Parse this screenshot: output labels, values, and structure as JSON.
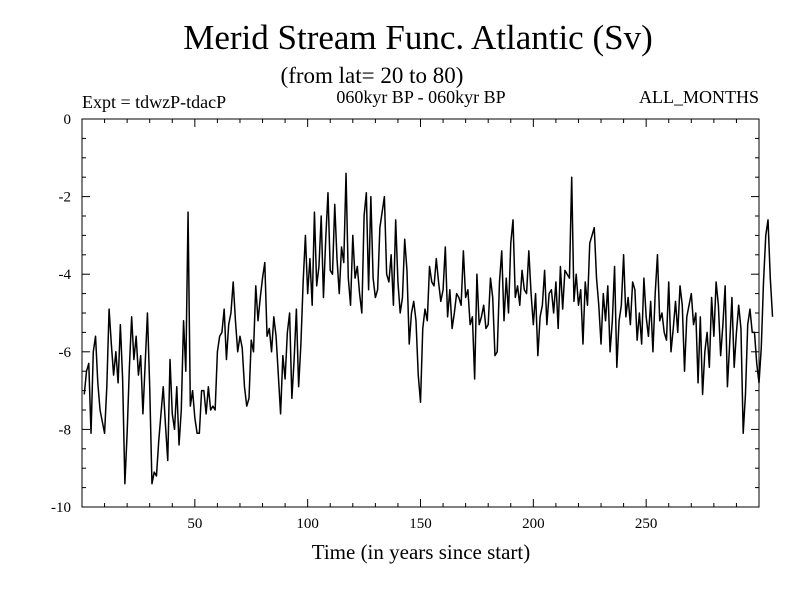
{
  "title": "Merid Stream Func. Atlantic (Sv)",
  "subtitle": "(from lat= 20 to 80)",
  "experiment_label": "Expt = tdwzP-tdacP",
  "period_label": "060kyr BP - 060kyr BP",
  "months_label": "ALL_MONTHS",
  "chart_data": {
    "type": "line",
    "title": "Merid Stream Func. Atlantic (Sv)",
    "subtitle": "(from lat= 20 to 80)",
    "xlabel": "Time (in years since start)",
    "ylabel": "",
    "xlim": [
      0,
      300
    ],
    "ylim": [
      -10,
      0
    ],
    "x_ticks": [
      50,
      100,
      150,
      200,
      250
    ],
    "y_ticks": [
      0,
      -2,
      -4,
      -6,
      -8,
      -10
    ],
    "grid": false,
    "series": [
      {
        "color": "#000000",
        "x_start": 1,
        "x_step": 1,
        "values": [
          -7.1,
          -6.5,
          -6.3,
          -8.1,
          -6.0,
          -5.6,
          -6.8,
          -7.5,
          -7.8,
          -8.1,
          -6.9,
          -4.9,
          -5.8,
          -6.6,
          -6.0,
          -6.8,
          -5.3,
          -6.7,
          -9.4,
          -8.1,
          -6.4,
          -5.1,
          -6.2,
          -5.6,
          -6.6,
          -6.1,
          -7.6,
          -6.3,
          -5.0,
          -6.9,
          -9.4,
          -9.1,
          -9.2,
          -8.3,
          -7.6,
          -6.9,
          -7.9,
          -8.8,
          -6.2,
          -7.6,
          -8.0,
          -6.9,
          -8.4,
          -7.5,
          -5.2,
          -6.5,
          -2.4,
          -7.4,
          -7.0,
          -7.7,
          -8.1,
          -8.1,
          -7.0,
          -7.0,
          -7.6,
          -6.9,
          -7.5,
          -7.4,
          -7.5,
          -6.0,
          -5.6,
          -5.5,
          -4.9,
          -6.2,
          -5.3,
          -5.0,
          -4.2,
          -5.2,
          -6.0,
          -5.6,
          -5.9,
          -6.9,
          -7.4,
          -7.2,
          -5.7,
          -6.0,
          -4.3,
          -5.2,
          -4.6,
          -4.1,
          -3.7,
          -5.6,
          -5.4,
          -6.0,
          -5.1,
          -5.6,
          -6.6,
          -7.6,
          -6.1,
          -6.7,
          -5.5,
          -5.0,
          -7.2,
          -6.2,
          -4.9,
          -6.9,
          -5.8,
          -4.2,
          -3.0,
          -4.5,
          -3.6,
          -4.8,
          -2.4,
          -4.3,
          -3.8,
          -2.5,
          -4.6,
          -3.1,
          -1.9,
          -3.9,
          -4.0,
          -2.2,
          -3.6,
          -4.5,
          -3.3,
          -3.7,
          -1.4,
          -4.1,
          -4.8,
          -3.0,
          -4.1,
          -3.8,
          -4.5,
          -5.0,
          -2.5,
          -1.9,
          -4.4,
          -2.0,
          -4.1,
          -4.6,
          -4.4,
          -2.8,
          -2.4,
          -2.0,
          -4.0,
          -4.2,
          -3.5,
          -4.8,
          -2.6,
          -4.2,
          -5.0,
          -4.6,
          -3.1,
          -3.9,
          -5.8,
          -5.0,
          -4.7,
          -5.2,
          -6.6,
          -7.3,
          -5.4,
          -4.9,
          -5.2,
          -3.8,
          -4.2,
          -4.3,
          -3.6,
          -4.2,
          -4.7,
          -4.4,
          -3.3,
          -5.1,
          -4.4,
          -5.4,
          -5.0,
          -4.5,
          -4.6,
          -4.8,
          -3.4,
          -4.6,
          -4.4,
          -5.3,
          -5.1,
          -6.7,
          -4.0,
          -5.3,
          -5.1,
          -4.8,
          -5.4,
          -5.3,
          -4.1,
          -4.6,
          -6.1,
          -6.0,
          -4.2,
          -3.4,
          -5.2,
          -4.1,
          -5.0,
          -3.2,
          -2.6,
          -4.6,
          -4.3,
          -4.8,
          -3.9,
          -4.4,
          -4.5,
          -3.4,
          -4.5,
          -5.3,
          -4.5,
          -6.1,
          -5.1,
          -4.8,
          -3.9,
          -5.3,
          -4.5,
          -4.4,
          -5.0,
          -4.2,
          -5.4,
          -3.8,
          -4.9,
          -3.9,
          -4.0,
          -4.1,
          -1.5,
          -4.7,
          -4.0,
          -4.8,
          -4.4,
          -5.8,
          -4.2,
          -4.8,
          -3.2,
          -3.0,
          -2.8,
          -4.1,
          -4.8,
          -5.8,
          -4.5,
          -5.2,
          -4.3,
          -6.0,
          -5.2,
          -3.8,
          -6.4,
          -5.2,
          -4.8,
          -3.5,
          -5.1,
          -4.6,
          -5.3,
          -4.2,
          -4.4,
          -5.7,
          -5.0,
          -5.8,
          -4.1,
          -5.1,
          -5.6,
          -4.7,
          -6.0,
          -4.5,
          -3.5,
          -5.2,
          -5.0,
          -5.5,
          -5.7,
          -4.2,
          -6.0,
          -5.4,
          -4.7,
          -5.5,
          -4.3,
          -4.8,
          -6.5,
          -5.1,
          -4.8,
          -4.5,
          -5.3,
          -5.0,
          -6.8,
          -5.1,
          -7.1,
          -6.0,
          -5.5,
          -6.4,
          -4.6,
          -5.6,
          -4.2,
          -4.8,
          -6.1,
          -5.3,
          -4.3,
          -6.9,
          -5.8,
          -4.6,
          -6.4,
          -5.5,
          -4.8,
          -5.4,
          -8.1,
          -7.1,
          -5.3,
          -4.9,
          -5.5,
          -5.5,
          -6.3,
          -6.8,
          -5.9,
          -4.2,
          -3.0,
          -2.6,
          -4.1,
          -5.1
        ]
      }
    ]
  }
}
